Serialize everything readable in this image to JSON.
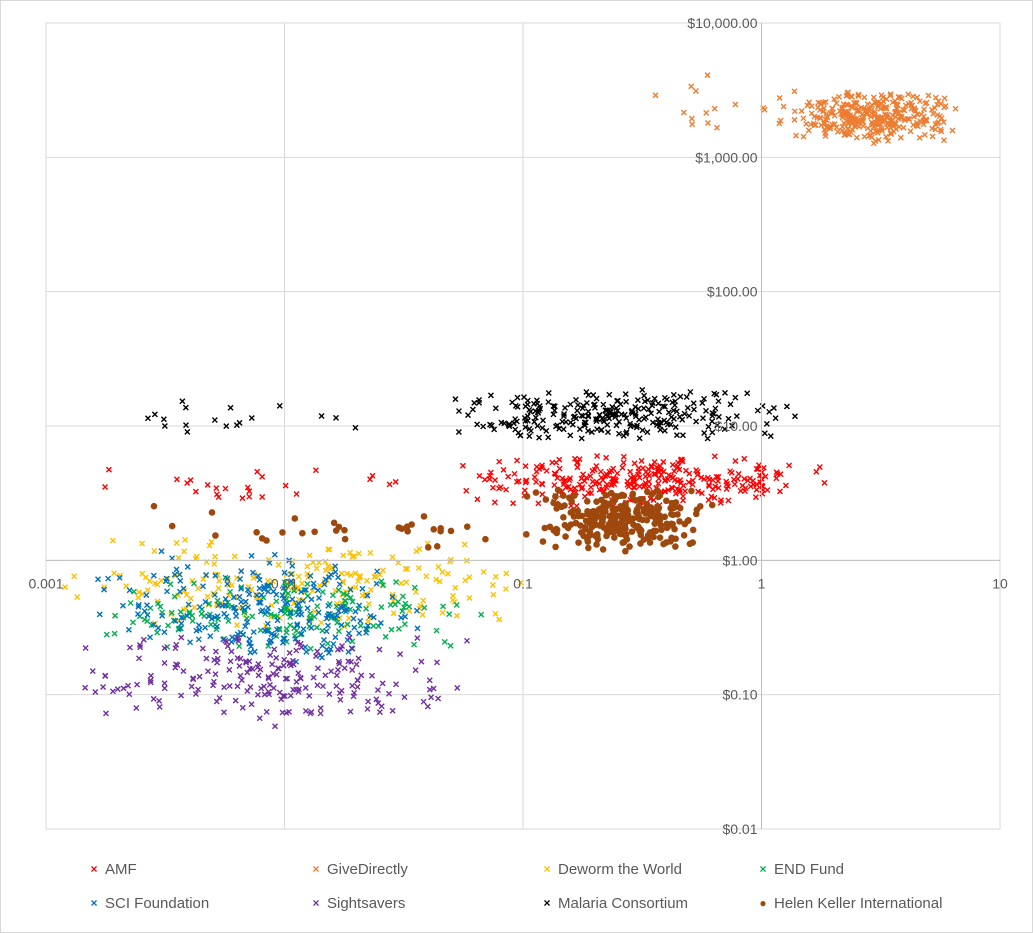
{
  "chart_data": {
    "type": "scatter",
    "x_scale": "log",
    "y_scale": "log",
    "xlim": [
      0.001,
      10
    ],
    "ylim": [
      0.01,
      10000
    ],
    "x_ticks": [
      "0.001",
      "0.01",
      "0.1",
      "1",
      "10"
    ],
    "y_ticks": [
      "$0.01",
      "$0.10",
      "$1.00",
      "$10.00",
      "$100.00",
      "$1,000.00",
      "$10,000.00"
    ],
    "x_tick_values": [
      0.001,
      0.01,
      0.1,
      1,
      10
    ],
    "y_tick_values": [
      0.01,
      0.1,
      1,
      10,
      100,
      1000,
      10000
    ],
    "grid": true,
    "legend_position": "bottom",
    "series": [
      {
        "name": "AMF",
        "color": "#ff0000",
        "marker": "x",
        "clusters": [
          {
            "log_x": [
              -1.3,
              0.3
            ],
            "log_y": [
              0.38,
              0.8
            ],
            "n": 300
          },
          {
            "log_x": [
              -2.9,
              -1.4
            ],
            "log_y": [
              0.45,
              0.7
            ],
            "n": 25
          }
        ]
      },
      {
        "name": "GiveDirectly",
        "color": "#ed7d31",
        "marker": "x",
        "clusters": [
          {
            "log_x": [
              0.05,
              0.85
            ],
            "log_y": [
              3.1,
              3.5
            ],
            "n": 320
          },
          {
            "log_x": [
              -0.5,
              0.05
            ],
            "log_y": [
              3.05,
              3.65
            ],
            "n": 14
          }
        ]
      },
      {
        "name": "Deworm the World",
        "color": "#ffc000",
        "marker": "x",
        "clusters": [
          {
            "log_x": [
              -3,
              -0.9
            ],
            "log_y": [
              -0.55,
              0.2
            ],
            "n": 220
          }
        ]
      },
      {
        "name": "END Fund",
        "color": "#00b050",
        "marker": "x",
        "clusters": [
          {
            "log_x": [
              -2.8,
              -1.1
            ],
            "log_y": [
              -0.7,
              -0.1
            ],
            "n": 160
          }
        ]
      },
      {
        "name": "SCI Foundation",
        "color": "#0070c0",
        "marker": "x",
        "clusters": [
          {
            "log_x": [
              -2.8,
              -1.4
            ],
            "log_y": [
              -0.8,
              0.1
            ],
            "n": 230
          }
        ]
      },
      {
        "name": "Sightsavers",
        "color": "#7030a0",
        "marker": "x",
        "clusters": [
          {
            "log_x": [
              -2.9,
              -1.2
            ],
            "log_y": [
              -1.25,
              -0.5
            ],
            "n": 210
          }
        ]
      },
      {
        "name": "Malaria Consortium",
        "color": "#000000",
        "marker": "x",
        "clusters": [
          {
            "log_x": [
              -1.4,
              0.2
            ],
            "log_y": [
              0.88,
              1.3
            ],
            "n": 260
          },
          {
            "log_x": [
              -2.9,
              -1.4
            ],
            "log_y": [
              0.9,
              1.2
            ],
            "n": 18
          }
        ]
      },
      {
        "name": "Helen Keller International",
        "color": "#9e480e",
        "marker": "circle",
        "clusters": [
          {
            "log_x": [
              -1.0,
              -0.2
            ],
            "log_y": [
              0.05,
              0.55
            ],
            "n": 260
          },
          {
            "log_x": [
              -2.7,
              -1.0
            ],
            "log_y": [
              0.05,
              0.45
            ],
            "n": 30
          }
        ]
      }
    ]
  }
}
